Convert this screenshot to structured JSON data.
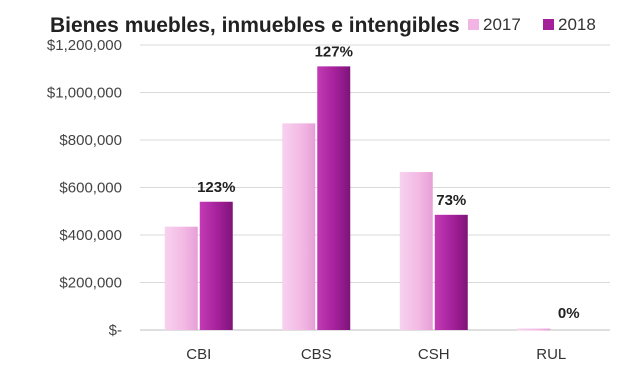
{
  "chart_data": {
    "type": "bar",
    "title": "Bienes muebles, inmuebles e intengibles",
    "categories": [
      "CBI",
      "CBS",
      "CSH",
      "RUL"
    ],
    "series": [
      {
        "name": "2017",
        "values": [
          435000,
          870000,
          665000,
          6000
        ],
        "color": "#f3b8e4"
      },
      {
        "name": "2018",
        "values": [
          540000,
          1110000,
          485000,
          0
        ],
        "color": "#a4209a"
      }
    ],
    "annotations": [
      "123%",
      "127%",
      "73%",
      "0%"
    ],
    "y_ticks": [
      "$-",
      "$200,000",
      "$400,000",
      "$600,000",
      "$800,000",
      "$1,000,000",
      "$1,200,000"
    ],
    "ylim": [
      0,
      1200000
    ],
    "grid": true,
    "legend": "top-right",
    "xlabel": "",
    "ylabel": ""
  }
}
